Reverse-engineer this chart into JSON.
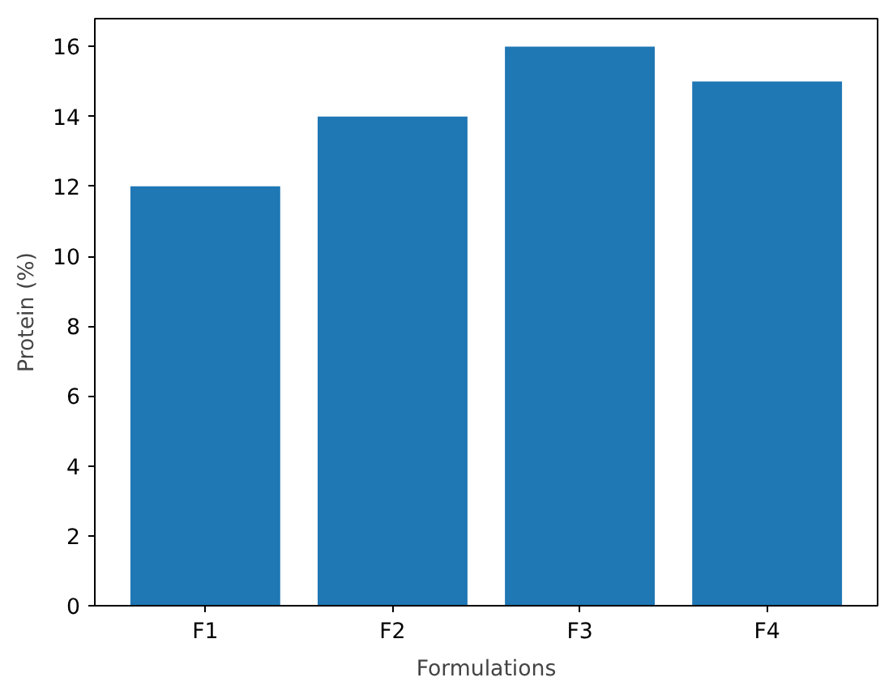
{
  "chart_data": {
    "type": "bar",
    "xlabel": "Formulations",
    "ylabel": "Protein (%)",
    "categories": [
      "F1",
      "F2",
      "F3",
      "F4"
    ],
    "values": [
      12,
      14,
      16,
      15
    ],
    "color": "#1f77b4",
    "ylim": [
      0,
      16.8
    ],
    "yticks": [
      0,
      2,
      4,
      6,
      8,
      10,
      12,
      14,
      16
    ],
    "grid": false
  }
}
